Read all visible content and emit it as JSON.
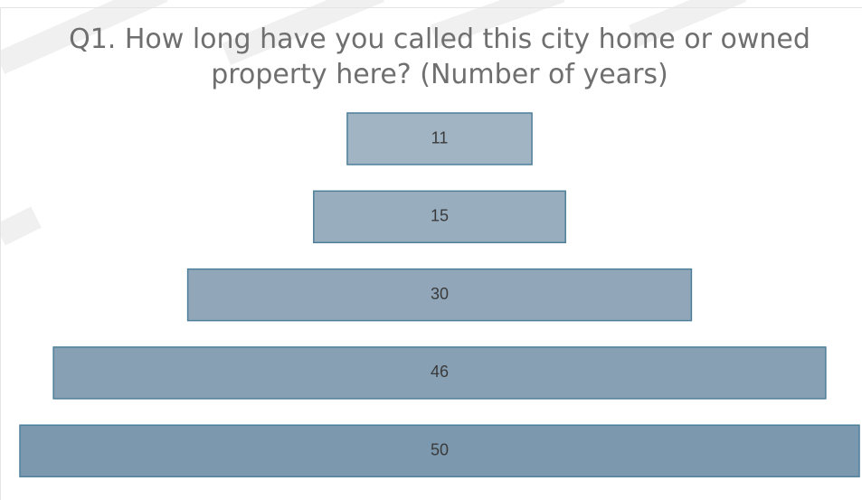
{
  "chart_data": {
    "type": "funnel",
    "title": "Q1. How long have you called this city home or owned property here? (Number of years)",
    "values": [
      11,
      15,
      30,
      46,
      50
    ],
    "colors": [
      "#a0b4c4",
      "#98adbe",
      "#91a7b9",
      "#87a0b4",
      "#7c98ae"
    ],
    "edge_color": "#4d7f9a"
  }
}
